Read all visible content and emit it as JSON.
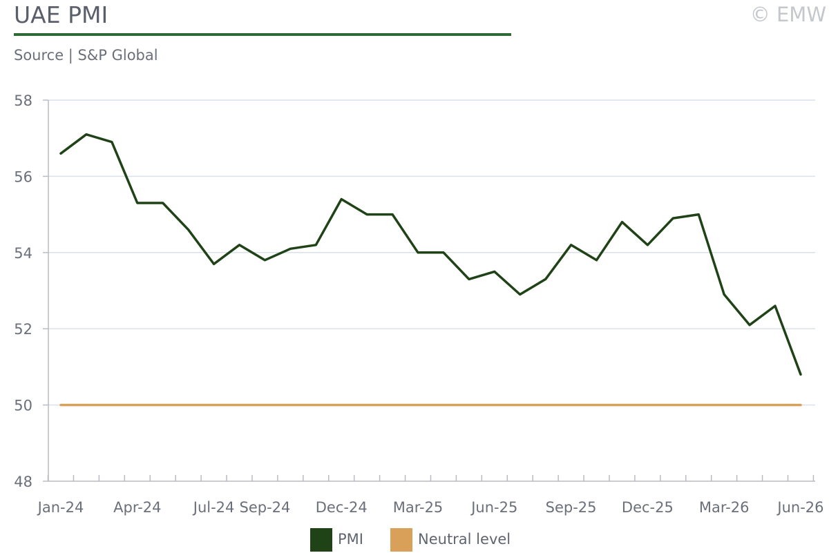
{
  "header": {
    "title": "UAE PMI",
    "copyright": "© EMW",
    "subtitle": "Source | S&P Global"
  },
  "chart_data": {
    "type": "line",
    "x": [
      "Jan-24",
      "Feb-24",
      "Mar-24",
      "Apr-24",
      "May-24",
      "Jun-24",
      "Jul-24",
      "Aug-24",
      "Sep-24",
      "Oct-24",
      "Nov-24",
      "Dec-24",
      "Jan-25",
      "Feb-25",
      "Mar-25",
      "Apr-25",
      "May-25",
      "Jun-25",
      "Jul-25",
      "Aug-25",
      "Sep-25",
      "Oct-25",
      "Nov-25",
      "Dec-25",
      "Jan-26",
      "Feb-26",
      "Mar-26",
      "Apr-26",
      "May-26",
      "Jun-26"
    ],
    "x_tick_labels": [
      "Jan-24",
      "Apr-24",
      "Jul-24",
      "Sep-24",
      "Dec-24",
      "Mar-25",
      "Jun-25",
      "Sep-25",
      "Dec-25",
      "Mar-26",
      "Jun-26"
    ],
    "series": [
      {
        "name": "PMI",
        "color": "#1f4316",
        "values": [
          56.6,
          57.1,
          56.9,
          55.3,
          55.3,
          54.6,
          53.7,
          54.2,
          53.8,
          54.1,
          54.2,
          55.4,
          55.0,
          55.0,
          54.0,
          54.0,
          53.3,
          53.5,
          52.9,
          53.3,
          54.2,
          53.8,
          54.8,
          54.2,
          54.9,
          55.0,
          52.9,
          52.1,
          52.6,
          50.8
        ]
      },
      {
        "name": "Neutral level",
        "color": "#d9a05a",
        "values": [
          50,
          50,
          50,
          50,
          50,
          50,
          50,
          50,
          50,
          50,
          50,
          50,
          50,
          50,
          50,
          50,
          50,
          50,
          50,
          50,
          50,
          50,
          50,
          50,
          50,
          50,
          50,
          50,
          50,
          50
        ]
      }
    ],
    "y_ticks": [
      48,
      50,
      52,
      54,
      56,
      58
    ],
    "ylim": [
      48,
      58
    ],
    "grid": true,
    "legend_position": "bottom-center"
  }
}
